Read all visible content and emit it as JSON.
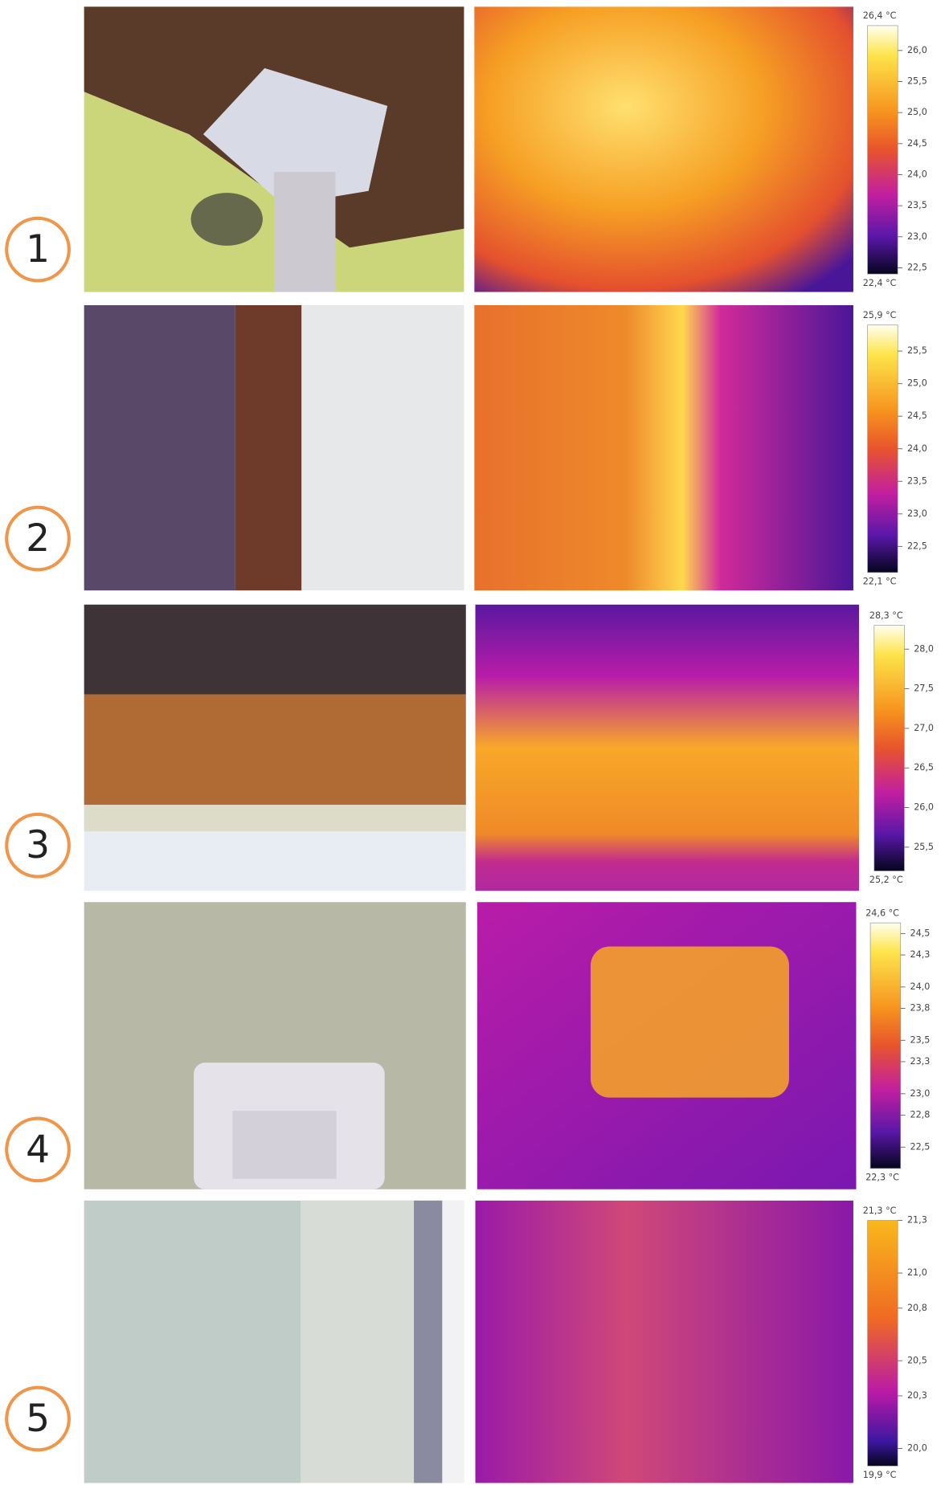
{
  "rows": [
    {
      "number": "1",
      "scale": {
        "max": {
          "value": 26.4,
          "label": "26,4 °C"
        },
        "min": {
          "value": 22.4,
          "label": "22,4 °C"
        },
        "ticks": [
          {
            "value": 26.0,
            "label": "26,0"
          },
          {
            "value": 25.5,
            "label": "25,5"
          },
          {
            "value": 25.0,
            "label": "25,0"
          },
          {
            "value": 24.5,
            "label": "24,5"
          },
          {
            "value": 24.0,
            "label": "24,0"
          },
          {
            "value": 23.5,
            "label": "23,5"
          },
          {
            "value": 23.0,
            "label": "23,0"
          },
          {
            "value": 22.5,
            "label": "22,5"
          }
        ]
      }
    },
    {
      "number": "2",
      "scale": {
        "max": {
          "value": 25.9,
          "label": "25,9 °C"
        },
        "min": {
          "value": 22.1,
          "label": "22,1 °C"
        },
        "ticks": [
          {
            "value": 25.5,
            "label": "25,5"
          },
          {
            "value": 25.0,
            "label": "25,0"
          },
          {
            "value": 24.5,
            "label": "24,5"
          },
          {
            "value": 24.0,
            "label": "24,0"
          },
          {
            "value": 23.5,
            "label": "23,5"
          },
          {
            "value": 23.0,
            "label": "23,0"
          },
          {
            "value": 22.5,
            "label": "22,5"
          }
        ]
      }
    },
    {
      "number": "3",
      "scale": {
        "max": {
          "value": 28.3,
          "label": "28,3 °C"
        },
        "min": {
          "value": 25.2,
          "label": "25,2 °C"
        },
        "ticks": [
          {
            "value": 28.0,
            "label": "28,0"
          },
          {
            "value": 27.5,
            "label": "27,5"
          },
          {
            "value": 27.0,
            "label": "27,0"
          },
          {
            "value": 26.5,
            "label": "26,5"
          },
          {
            "value": 26.0,
            "label": "26,0"
          },
          {
            "value": 25.5,
            "label": "25,5"
          }
        ]
      }
    },
    {
      "number": "4",
      "scale": {
        "max": {
          "value": 24.6,
          "label": "24,6 °C"
        },
        "min": {
          "value": 22.3,
          "label": "22,3 °C"
        },
        "ticks": [
          {
            "value": 24.5,
            "label": "24,5"
          },
          {
            "value": 24.3,
            "label": "24,3"
          },
          {
            "value": 24.0,
            "label": "24,0"
          },
          {
            "value": 23.8,
            "label": "23,8"
          },
          {
            "value": 23.5,
            "label": "23,5"
          },
          {
            "value": 23.3,
            "label": "23,3"
          },
          {
            "value": 23.0,
            "label": "23,0"
          },
          {
            "value": 22.8,
            "label": "22,8"
          },
          {
            "value": 22.5,
            "label": "22,5"
          }
        ]
      }
    },
    {
      "number": "5",
      "scale": {
        "max": {
          "value": 21.3,
          "label": "21,3 °C"
        },
        "min": {
          "value": 19.9,
          "label": "19,9 °C"
        },
        "ticks": [
          {
            "value": 21.3,
            "label": "21,3"
          },
          {
            "value": 21.0,
            "label": "21,0"
          },
          {
            "value": 20.8,
            "label": "20,8"
          },
          {
            "value": 20.5,
            "label": "20,5"
          },
          {
            "value": 20.3,
            "label": "20,3"
          },
          {
            "value": 20.0,
            "label": "20,0"
          }
        ]
      }
    }
  ]
}
